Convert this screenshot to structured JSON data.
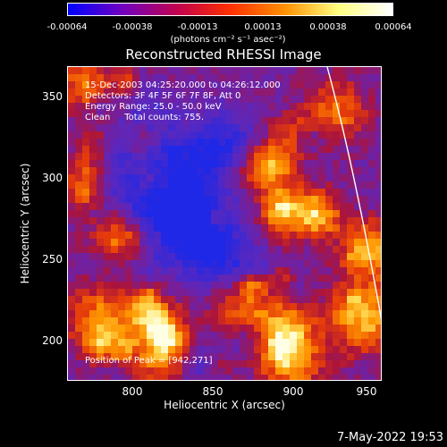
{
  "colorbar": {
    "ticks": [
      "-0.00064",
      "-0.00038",
      "-0.00013",
      "0.00013",
      "0.00038",
      "0.00064"
    ],
    "unit": "(photons cm⁻² s⁻¹ asec⁻²)",
    "range": [
      -0.00064,
      0.00064
    ],
    "colors": [
      "#0000ff",
      "#7000c0",
      "#c00050",
      "#ff3000",
      "#ff9000",
      "#ffff80",
      "#ffffff"
    ]
  },
  "title": "Reconstructed RHESSI Image",
  "annotations": {
    "time_range": "15-Dec-2003 04:25:20.000 to 04:26:12.000",
    "detectors": "Detectors: 3F 4F 5F 6F 7F 8F, Att 0",
    "energy": "Energy Range: 25.0 - 50.0 keV",
    "clean": "Clean     Total counts: 755.",
    "peak": "Position of Peak = [942,271]"
  },
  "axes": {
    "xlabel": "Heliocentric X (arcsec)",
    "ylabel": "Heliocentric Y (arcsec)",
    "xticks": [
      "800",
      "850",
      "900",
      "950"
    ],
    "yticks": [
      "350",
      "300",
      "250",
      "200"
    ],
    "xlim": [
      761,
      953
    ],
    "ylim": [
      173,
      368
    ]
  },
  "timestamp": "7-May-2022 19:53",
  "image": {
    "limb_curve_color": "#ffffff",
    "background_color": "#5a28a8"
  }
}
